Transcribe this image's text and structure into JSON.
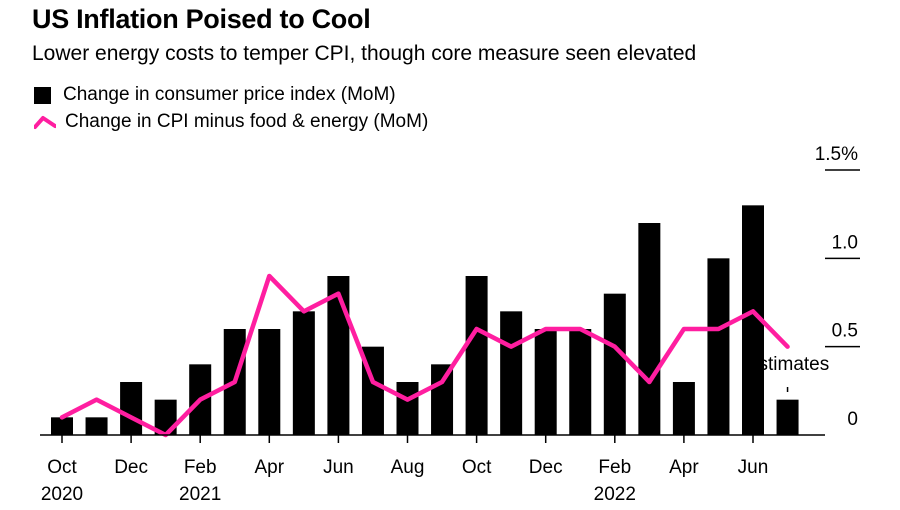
{
  "title": "US Inflation Poised to Cool",
  "subtitle": "Lower energy costs to temper CPI, though core measure seen elevated",
  "legend": {
    "bar_label": "Change in consumer price index (MoM)",
    "line_label": "Change in CPI minus food & energy (MoM)"
  },
  "annotation": "Estimates",
  "colors": {
    "bar": "#000000",
    "line": "#ff1ea0",
    "axis": "#000000"
  },
  "chart_data": {
    "type": "bar",
    "months": [
      "Oct 2020",
      "Nov 2020",
      "Dec 2020",
      "Jan 2021",
      "Feb 2021",
      "Mar 2021",
      "Apr 2021",
      "May 2021",
      "Jun 2021",
      "Jul 2021",
      "Aug 2021",
      "Sep 2021",
      "Oct 2021",
      "Nov 2021",
      "Dec 2021",
      "Jan 2022",
      "Feb 2022",
      "Mar 2022",
      "Apr 2022",
      "May 2022",
      "Jun 2022",
      "Jul 2022"
    ],
    "x_tick_labels": [
      {
        "index": 0,
        "month": "Oct",
        "year": "2020"
      },
      {
        "index": 2,
        "month": "Dec",
        "year": ""
      },
      {
        "index": 4,
        "month": "Feb",
        "year": "2021"
      },
      {
        "index": 6,
        "month": "Apr",
        "year": ""
      },
      {
        "index": 8,
        "month": "Jun",
        "year": ""
      },
      {
        "index": 10,
        "month": "Aug",
        "year": ""
      },
      {
        "index": 12,
        "month": "Oct",
        "year": ""
      },
      {
        "index": 14,
        "month": "Dec",
        "year": ""
      },
      {
        "index": 16,
        "month": "Feb",
        "year": "2022"
      },
      {
        "index": 18,
        "month": "Apr",
        "year": ""
      },
      {
        "index": 20,
        "month": "Jun",
        "year": ""
      }
    ],
    "series": [
      {
        "name": "Change in consumer price index (MoM)",
        "kind": "bar",
        "values": [
          0.1,
          0.1,
          0.3,
          0.2,
          0.4,
          0.6,
          0.6,
          0.7,
          0.9,
          0.5,
          0.3,
          0.4,
          0.9,
          0.7,
          0.6,
          0.6,
          0.8,
          1.2,
          0.3,
          1.0,
          1.3,
          0.2
        ]
      },
      {
        "name": "Change in CPI minus food & energy (MoM)",
        "kind": "line",
        "values": [
          0.1,
          0.2,
          0.1,
          0.0,
          0.2,
          0.3,
          0.9,
          0.7,
          0.8,
          0.3,
          0.2,
          0.3,
          0.6,
          0.5,
          0.6,
          0.6,
          0.5,
          0.3,
          0.6,
          0.6,
          0.7,
          0.5
        ]
      }
    ],
    "y_ticks": [
      {
        "value": 0,
        "label": "0"
      },
      {
        "value": 0.5,
        "label": "0.5"
      },
      {
        "value": 1.0,
        "label": "1.0"
      },
      {
        "value": 1.5,
        "label": "1.5%"
      }
    ],
    "ylim": [
      0,
      1.5
    ],
    "estimate_from_index": 21,
    "grid": false,
    "legend_position": "top-left"
  }
}
